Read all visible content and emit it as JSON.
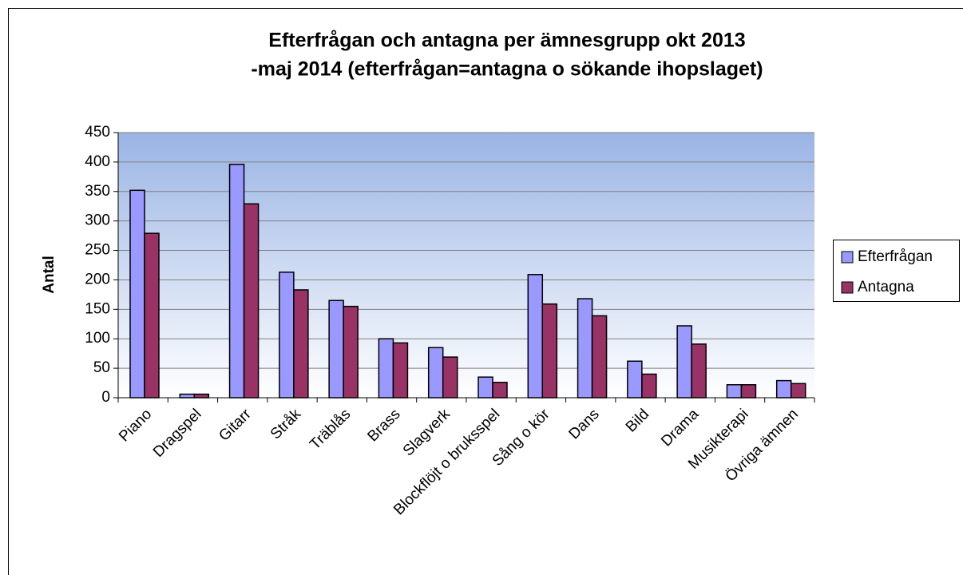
{
  "chart_data": {
    "type": "bar",
    "title": [
      "Efterfrågan och antagna per ämnesgrupp okt 2013",
      "-maj 2014 (efterfrågan=antagna o sökande ihopslaget)"
    ],
    "ylabel": "Antal",
    "categories": [
      "Piano",
      "Dragspel",
      "Gitarr",
      "Stråk",
      "Träblås",
      "Brass",
      "Slagverk",
      "Blockflöjt o bruksspel",
      "Sång o kör",
      "Dans",
      "Bild",
      "Drama",
      "Musikterapi",
      "Övriga ämnen"
    ],
    "series": [
      {
        "name": "Efterfrågan",
        "color": "#9999ff",
        "values": [
          352,
          6,
          396,
          213,
          165,
          100,
          85,
          35,
          209,
          168,
          62,
          122,
          22,
          29
        ]
      },
      {
        "name": "Antagna",
        "color": "#993366",
        "values": [
          279,
          6,
          329,
          183,
          155,
          93,
          69,
          26,
          159,
          139,
          40,
          91,
          22,
          24
        ]
      }
    ],
    "ylim": [
      0,
      450
    ],
    "yticks": [
      0,
      50,
      100,
      150,
      200,
      250,
      300,
      350,
      400,
      450
    ],
    "grid": true,
    "legend": "right"
  }
}
